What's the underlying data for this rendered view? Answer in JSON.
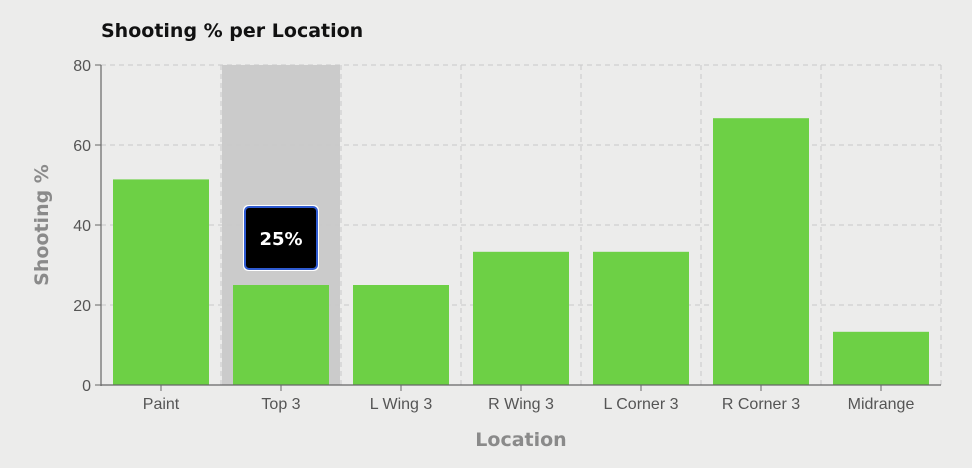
{
  "chart_data": {
    "type": "bar",
    "title": "Shooting % per Location",
    "xlabel": "Location",
    "ylabel": "Shooting %",
    "categories": [
      "Paint",
      "Top 3",
      "L Wing 3",
      "R Wing 3",
      "L Corner 3",
      "R Corner 3",
      "Midrange"
    ],
    "values": [
      51.4,
      25,
      25,
      33.3,
      33.3,
      66.7,
      13.3
    ],
    "ylim": [
      0,
      80
    ],
    "yticks": [
      0,
      20,
      40,
      60,
      80
    ],
    "grid": true,
    "bar_color": "#6dd045",
    "highlighted_category": "Top 3",
    "highlight_color": "#cbcbcb",
    "tooltip": {
      "label": "25%",
      "background": "#000000",
      "border": "#2f5bd1"
    }
  }
}
